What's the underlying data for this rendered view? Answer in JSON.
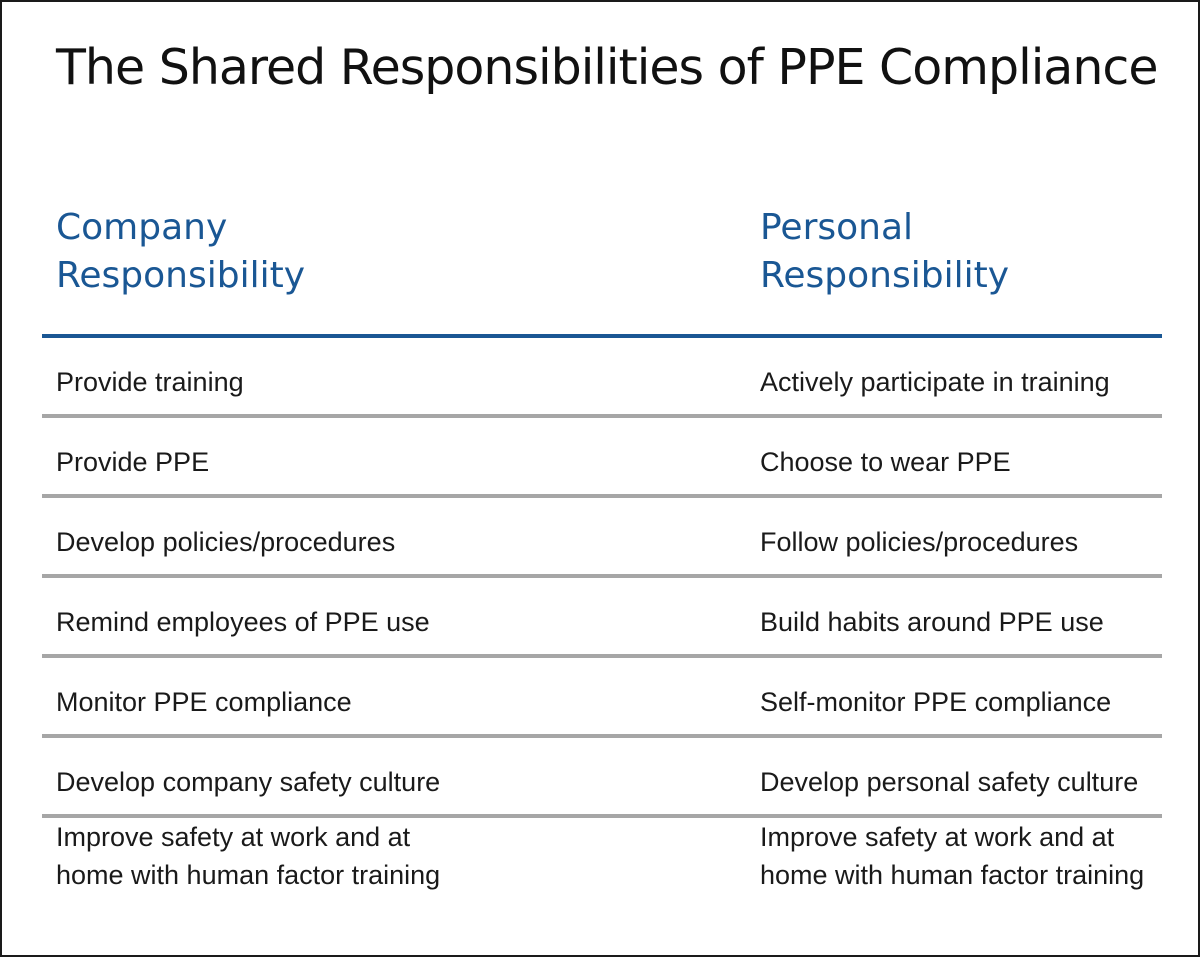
{
  "title": "The Shared Responsibilities of PPE Compliance",
  "columns": {
    "company": [
      "Company",
      "Responsibility"
    ],
    "personal": [
      "Personal",
      "Responsibility"
    ]
  },
  "rows": [
    {
      "company": "Provide training",
      "personal": "Actively participate in training"
    },
    {
      "company": "Provide PPE",
      "personal": "Choose to wear PPE"
    },
    {
      "company": "Develop policies/procedures",
      "personal": "Follow policies/procedures"
    },
    {
      "company": "Remind employees of PPE use",
      "personal": "Build habits around PPE use"
    },
    {
      "company": "Monitor PPE compliance",
      "personal": "Self-monitor PPE compliance"
    },
    {
      "company": "Develop company safety culture",
      "personal": "Develop personal safety culture"
    },
    {
      "company": "Improve safety at work and at\nhome with human factor training",
      "personal": "Improve safety at work and at\nhome with human factor training"
    }
  ],
  "colors": {
    "heading_blue": "#1a5794",
    "divider_gray": "#a6a6a6",
    "text": "#1a1a1a"
  }
}
